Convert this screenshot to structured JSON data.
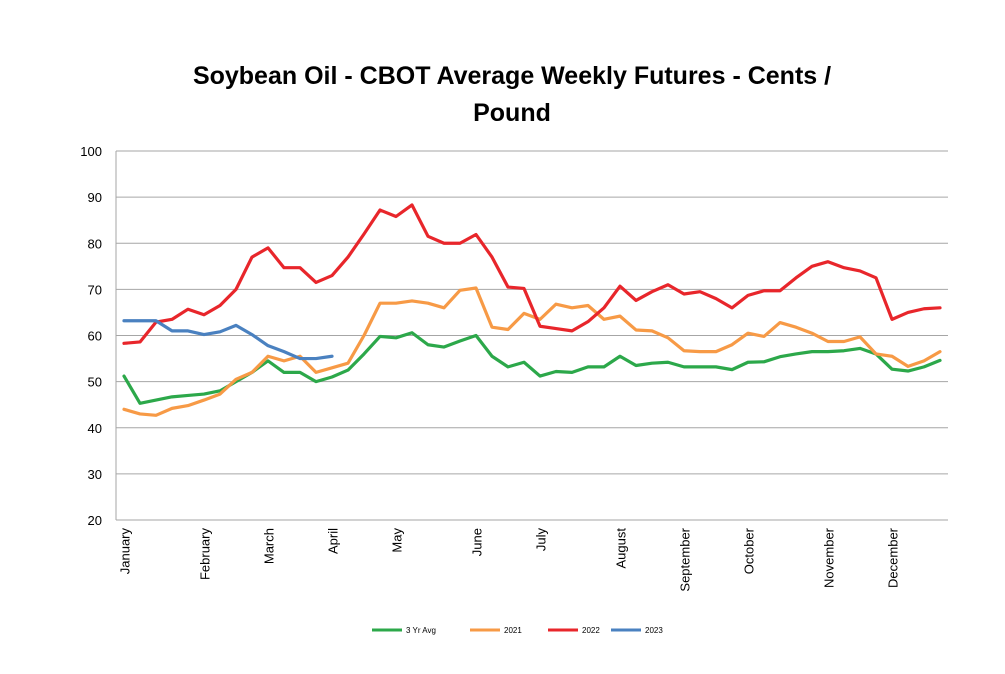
{
  "chart_data": {
    "type": "line",
    "title": "Soybean Oil - CBOT Average Weekly Futures - Cents / Pound",
    "categories": [
      "January",
      null,
      null,
      null,
      null,
      "February",
      null,
      null,
      null,
      "March",
      null,
      null,
      null,
      "April",
      null,
      null,
      null,
      "May",
      null,
      null,
      null,
      null,
      "June",
      null,
      null,
      null,
      "July",
      null,
      null,
      null,
      null,
      "August",
      null,
      null,
      null,
      "September",
      null,
      null,
      null,
      "October",
      null,
      null,
      null,
      null,
      "November",
      null,
      null,
      null,
      "December",
      null,
      null,
      null
    ],
    "series": [
      {
        "name": "3 Yr Avg",
        "color": "#2ca84a",
        "values": [
          51.2,
          45.3,
          46,
          46.7,
          47,
          47.3,
          48,
          50,
          52,
          54.5,
          52,
          52,
          50,
          51,
          52.5,
          56,
          59.8,
          59.5,
          60.6,
          58,
          57.5,
          58.8,
          60,
          55.5,
          53.2,
          54.2,
          51.2,
          52.2,
          52,
          53.2,
          53.2,
          55.5,
          53.5,
          54,
          54.2,
          53.2,
          53.2,
          53.2,
          52.6,
          54.2,
          54.3,
          55.4,
          56,
          56.5,
          56.5,
          56.7,
          57.2,
          56,
          52.7,
          52.3,
          53.2,
          54.6
        ]
      },
      {
        "name": "2021",
        "color": "#f79a46",
        "values": [
          44,
          43,
          42.7,
          44.2,
          44.8,
          46,
          47.3,
          50.5,
          52,
          55.5,
          54.5,
          55.5,
          52,
          53,
          54,
          60,
          67,
          67,
          67.5,
          67,
          66,
          69.8,
          70.3,
          61.8,
          61.3,
          64.8,
          63.5,
          66.8,
          66,
          66.5,
          63.5,
          64.2,
          61.2,
          61,
          59.5,
          56.7,
          56.5,
          56.5,
          58,
          60.5,
          59.8,
          62.8,
          61.8,
          60.5,
          58.7,
          58.7,
          59.7,
          56,
          55.5,
          53.3,
          54.5,
          56.5
        ]
      },
      {
        "name": "2022",
        "color": "#e8262b",
        "values": [
          58.3,
          58.6,
          62.9,
          63.5,
          65.7,
          64.5,
          66.5,
          70,
          77,
          79,
          74.7,
          74.7,
          71.5,
          73,
          77,
          82,
          87.2,
          85.8,
          88.3,
          81.5,
          80,
          80,
          81.9,
          77,
          70.5,
          70.2,
          62,
          61.5,
          61,
          63,
          66,
          70.7,
          67.6,
          69.5,
          71,
          69,
          69.5,
          68,
          66,
          68.7,
          69.7,
          69.7,
          72.5,
          75,
          76,
          74.7,
          74,
          72.5,
          63.5,
          65,
          65.8,
          66
        ]
      },
      {
        "name": "2023",
        "color": "#4a81c0",
        "values": [
          63.2,
          63.2,
          63.2,
          61,
          61,
          60.2,
          60.8,
          62.2,
          60.2,
          57.8,
          56.5,
          55,
          55,
          55.5,
          null,
          null,
          null,
          null,
          null,
          null,
          null,
          null,
          null,
          null,
          null,
          null,
          null,
          null,
          null,
          null,
          null,
          null,
          null,
          null,
          null,
          null,
          null,
          null,
          null,
          null,
          null,
          null,
          null,
          null,
          null,
          null,
          null,
          null,
          null,
          null,
          null,
          null
        ]
      }
    ],
    "ylim": [
      20,
      100
    ],
    "yticks": [
      20,
      30,
      40,
      50,
      60,
      70,
      80,
      90,
      100
    ],
    "grid": true,
    "legend": "bottom"
  }
}
